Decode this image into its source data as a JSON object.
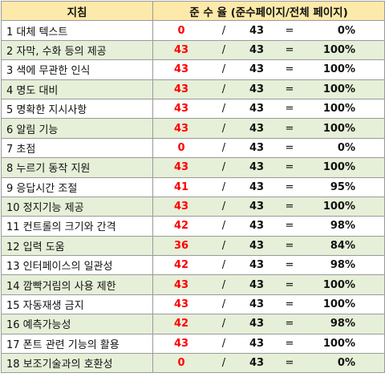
{
  "header": {
    "guideline": "지침",
    "compliance": "준 수 율 (준수페이지/전체 페이지)"
  },
  "rows": [
    {
      "guideline": "1 대체 텍스트",
      "compliant": "0",
      "slash": "/",
      "total": "43",
      "eq": "=",
      "rate": "0%"
    },
    {
      "guideline": "2 자막, 수화 등의 제공",
      "compliant": "43",
      "slash": "/",
      "total": "43",
      "eq": "=",
      "rate": "100%"
    },
    {
      "guideline": "3 색에 무관한 인식",
      "compliant": "43",
      "slash": "/",
      "total": "43",
      "eq": "=",
      "rate": "100%"
    },
    {
      "guideline": "4 명도 대비",
      "compliant": "43",
      "slash": "/",
      "total": "43",
      "eq": "=",
      "rate": "100%"
    },
    {
      "guideline": "5 명확한 지시사항",
      "compliant": "43",
      "slash": "/",
      "total": "43",
      "eq": "=",
      "rate": "100%"
    },
    {
      "guideline": "6 알림 기능",
      "compliant": "43",
      "slash": "/",
      "total": "43",
      "eq": "=",
      "rate": "100%"
    },
    {
      "guideline": "7 초점",
      "compliant": "0",
      "slash": "/",
      "total": "43",
      "eq": "=",
      "rate": "0%"
    },
    {
      "guideline": "8 누르기 동작 지원",
      "compliant": "43",
      "slash": "/",
      "total": "43",
      "eq": "=",
      "rate": "100%"
    },
    {
      "guideline": "9 응답시간 조절",
      "compliant": "41",
      "slash": "/",
      "total": "43",
      "eq": "=",
      "rate": "95%"
    },
    {
      "guideline": "10 정지기능 제공",
      "compliant": "43",
      "slash": "/",
      "total": "43",
      "eq": "=",
      "rate": "100%"
    },
    {
      "guideline": "11 컨트롤의 크기와 간격",
      "compliant": "42",
      "slash": "/",
      "total": "43",
      "eq": "=",
      "rate": "98%"
    },
    {
      "guideline": "12 입력 도움",
      "compliant": "36",
      "slash": "/",
      "total": "43",
      "eq": "=",
      "rate": "84%"
    },
    {
      "guideline": "13 인터페이스의 일관성",
      "compliant": "42",
      "slash": "/",
      "total": "43",
      "eq": "=",
      "rate": "98%"
    },
    {
      "guideline": "14 깜빡거림의 사용 제한",
      "compliant": "43",
      "slash": "/",
      "total": "43",
      "eq": "=",
      "rate": "100%"
    },
    {
      "guideline": "15 자동재생 금지",
      "compliant": "43",
      "slash": "/",
      "total": "43",
      "eq": "=",
      "rate": "100%"
    },
    {
      "guideline": "16 예측가능성",
      "compliant": "42",
      "slash": "/",
      "total": "43",
      "eq": "=",
      "rate": "98%"
    },
    {
      "guideline": "17 폰트 관련 기능의 활용",
      "compliant": "43",
      "slash": "/",
      "total": "43",
      "eq": "=",
      "rate": "100%"
    },
    {
      "guideline": "18 보조기술과의 호환성",
      "compliant": "0",
      "slash": "/",
      "total": "43",
      "eq": "=",
      "rate": "0%"
    }
  ],
  "colors": {
    "header_bg": "#fde9a9",
    "alt_row_bg": "#e6efd8",
    "compliant_text": "#ff0000",
    "border": "#9a9a9a"
  }
}
